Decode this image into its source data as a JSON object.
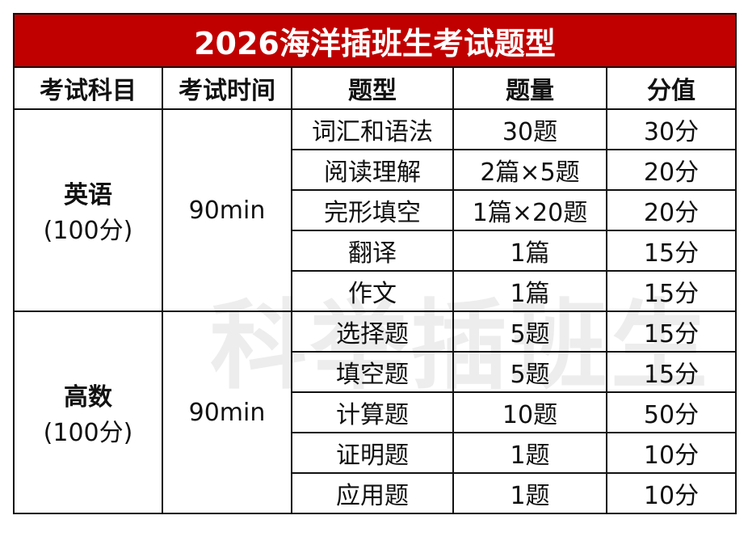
{
  "title": "2026海洋插班生考试题型",
  "header": [
    "考试科目",
    "考试时间",
    "题型",
    "题量",
    "分值"
  ],
  "groups": [
    {
      "subject": "英语",
      "score": "(100分)",
      "time": "90min",
      "rows": [
        [
          "词汇和语法",
          "30题",
          "30分"
        ],
        [
          "阅读理解",
          "2篇×5题",
          "20分"
        ],
        [
          "完形填空",
          "1篇×20题",
          "20分"
        ],
        [
          "翻译",
          "1篇",
          "15分"
        ],
        [
          "作文",
          "1篇",
          "15分"
        ]
      ]
    },
    {
      "subject": "高数",
      "score": "(100分)",
      "time": "90min",
      "rows": [
        [
          "选择题",
          "5题",
          "15分"
        ],
        [
          "填空题",
          "5题",
          "15分"
        ],
        [
          "计算题",
          "10题",
          "50分"
        ],
        [
          "证明题",
          "1题",
          "10分"
        ],
        [
          "应用题",
          "1题",
          "10分"
        ]
      ]
    }
  ],
  "watermark": "科举插班生"
}
